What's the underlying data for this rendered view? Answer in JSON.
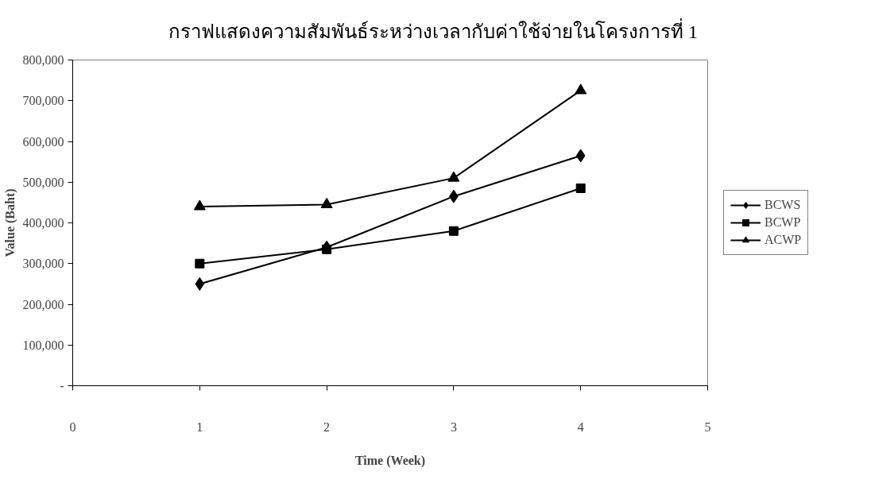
{
  "chart_data": {
    "type": "line",
    "title": "กราฟแสดงความสัมพันธ์ระหว่างเวลากับค่าใช้จ่ายในโครงการที่ 1",
    "xlabel": "Time (Week)",
    "ylabel": "Value (Baht)",
    "x": [
      1,
      2,
      3,
      4
    ],
    "series": [
      {
        "name": "BCWS",
        "color": "#000000",
        "marker": "diamond",
        "values": [
          250000,
          340000,
          465000,
          565000
        ]
      },
      {
        "name": "BCWP",
        "color": "#000000",
        "marker": "square",
        "values": [
          300000,
          335000,
          380000,
          485000
        ]
      },
      {
        "name": "ACWP",
        "color": "#000000",
        "marker": "triangle",
        "values": [
          440000,
          445000,
          510000,
          725000
        ]
      }
    ],
    "xlim": [
      0,
      5
    ],
    "xticks": [
      0,
      1,
      2,
      3,
      4,
      5
    ],
    "ylim": [
      0,
      800000
    ],
    "yticks": [
      {
        "value": 0,
        "label": "-"
      },
      {
        "value": 100000,
        "label": "100,000"
      },
      {
        "value": 200000,
        "label": "200,000"
      },
      {
        "value": 300000,
        "label": "300,000"
      },
      {
        "value": 400000,
        "label": "400,000"
      },
      {
        "value": 500000,
        "label": "500,000"
      },
      {
        "value": 600000,
        "label": "600,000"
      },
      {
        "value": 700000,
        "label": "700,000"
      },
      {
        "value": 800000,
        "label": "800,000"
      }
    ],
    "grid": false,
    "legend": "right",
    "line_style": "solid"
  }
}
